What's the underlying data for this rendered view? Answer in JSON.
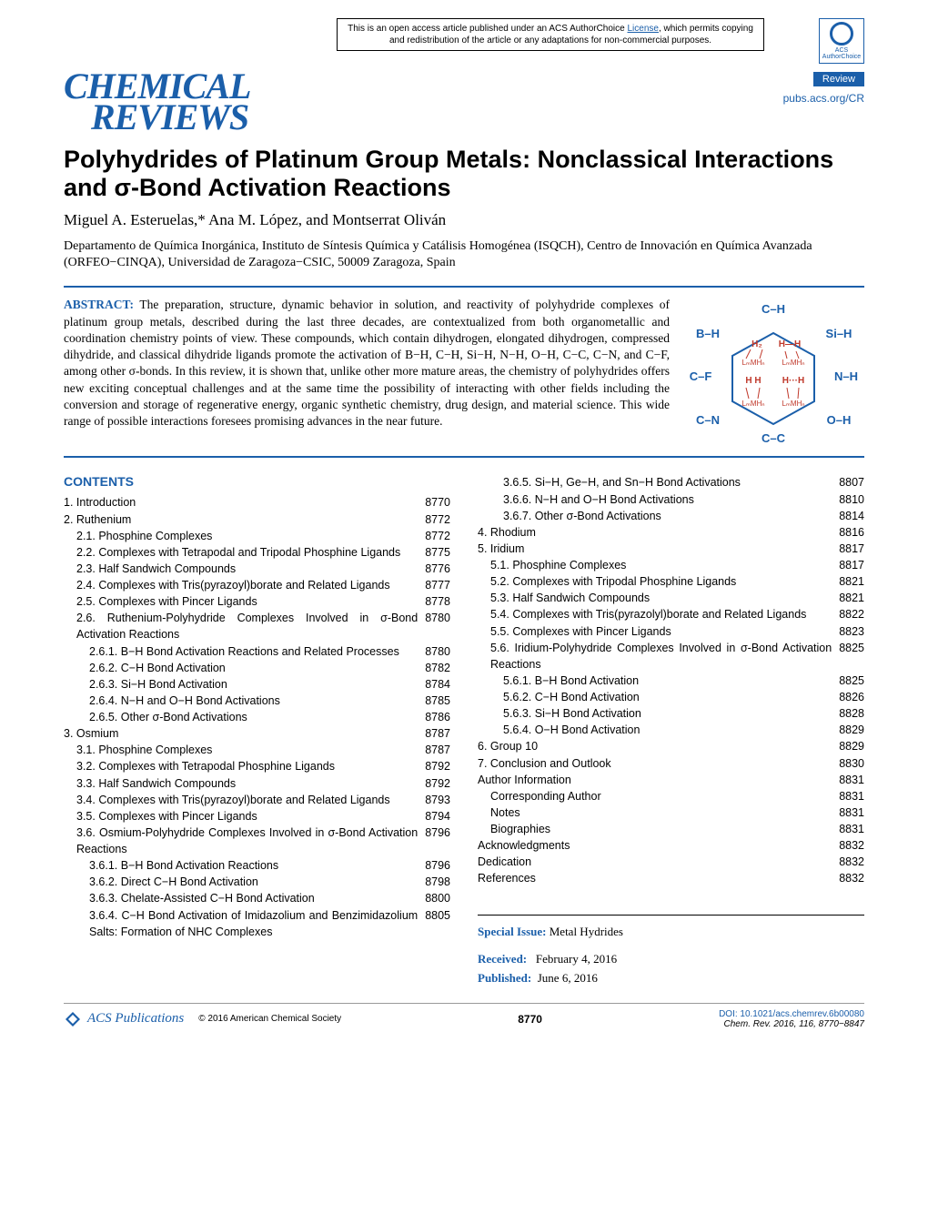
{
  "license_notice": "This is an open access article published under an ACS AuthorChoice ",
  "license_link_text": "License",
  "license_notice2": ", which permits copying and redistribution of the article or any adaptations for non-commercial purposes.",
  "acs_badge_label": "ACS AuthorChoice",
  "journal_logo_line1": "CHEMICAL",
  "journal_logo_line2": "REVIEWS",
  "review_badge": "Review",
  "pubs_link": "pubs.acs.org/CR",
  "title": "Polyhydrides of Platinum Group Metals: Nonclassical Interactions and σ-Bond Activation Reactions",
  "authors": "Miguel A. Esteruelas,* Ana M. López, and Montserrat Oliván",
  "affiliation": "Departamento de Química Inorgánica, Instituto de Síntesis Química y Catálisis Homogénea (ISQCH), Centro de Innovación en Química Avanzada (ORFEO−CINQA), Universidad de Zaragoza−CSIC, 50009 Zaragoza, Spain",
  "abstract_label": "ABSTRACT:",
  "abstract_text": "The preparation, structure, dynamic behavior in solution, and reactivity of polyhydride complexes of platinum group metals, described during the last three decades, are contextualized from both organometallic and coordination chemistry points of view. These compounds, which contain dihydrogen, elongated dihydrogen, compressed dihydride, and classical dihydride ligands promote the activation of B−H, C−H, Si−H, N−H, O−H, C−C, C−N, and C−F, among other σ-bonds. In this review, it is shown that, unlike other more mature areas, the chemistry of polyhydrides offers new exciting conceptual challenges and at the same time the possibility of interacting with other fields including the conversion and storage of regenerative energy, organic synthetic chemistry, drug design, and material science. This wide range of possible interactions foresees promising advances in the near future.",
  "toc_graphic": {
    "hex_color": "#1b5faa",
    "red_color": "#c0392b",
    "labels": {
      "top": "C–H",
      "tr": "Si–H",
      "r": "N–H",
      "br": "O–H",
      "b": "C–C",
      "bl": "C–N",
      "l": "C–F",
      "tl": "B–H"
    },
    "center_labels": [
      "H₂",
      "H—H",
      "LₘMHₙ",
      "LₘMHₙ",
      "H   H",
      "H···H",
      "LₘMHₙ",
      "LₘMHₙ"
    ]
  },
  "contents_heading": "CONTENTS",
  "toc_left": [
    {
      "label": "1. Introduction",
      "page": "8770",
      "indent": 0
    },
    {
      "label": "2. Ruthenium",
      "page": "8772",
      "indent": 0
    },
    {
      "label": "2.1. Phosphine Complexes",
      "page": "8772",
      "indent": 1
    },
    {
      "label": "2.2. Complexes with Tetrapodal and Tripodal Phosphine Ligands",
      "page": "8775",
      "indent": 1
    },
    {
      "label": "2.3. Half Sandwich Compounds",
      "page": "8776",
      "indent": 1
    },
    {
      "label": "2.4. Complexes with Tris(pyrazoyl)borate and Related Ligands",
      "page": "8777",
      "indent": 1
    },
    {
      "label": "2.5. Complexes with Pincer Ligands",
      "page": "8778",
      "indent": 1
    },
    {
      "label": "2.6. Ruthenium-Polyhydride Complexes Involved in σ-Bond Activation Reactions",
      "page": "8780",
      "indent": 1
    },
    {
      "label": "2.6.1. B−H Bond Activation Reactions and Related Processes",
      "page": "8780",
      "indent": 2
    },
    {
      "label": "2.6.2. C−H Bond Activation",
      "page": "8782",
      "indent": 2
    },
    {
      "label": "2.6.3. Si−H Bond Activation",
      "page": "8784",
      "indent": 2
    },
    {
      "label": "2.6.4. N−H and O−H Bond Activations",
      "page": "8785",
      "indent": 2
    },
    {
      "label": "2.6.5. Other σ-Bond Activations",
      "page": "8786",
      "indent": 2
    },
    {
      "label": "3. Osmium",
      "page": "8787",
      "indent": 0
    },
    {
      "label": "3.1. Phosphine Complexes",
      "page": "8787",
      "indent": 1
    },
    {
      "label": "3.2. Complexes with Tetrapodal Phosphine Ligands",
      "page": "8792",
      "indent": 1
    },
    {
      "label": "3.3. Half Sandwich Compounds",
      "page": "8792",
      "indent": 1
    },
    {
      "label": "3.4. Complexes with Tris(pyrazoyl)borate and Related Ligands",
      "page": "8793",
      "indent": 1
    },
    {
      "label": "3.5. Complexes with Pincer Ligands",
      "page": "8794",
      "indent": 1
    },
    {
      "label": "3.6. Osmium-Polyhydride Complexes Involved in σ-Bond Activation Reactions",
      "page": "8796",
      "indent": 1
    },
    {
      "label": "3.6.1. B−H Bond Activation Reactions",
      "page": "8796",
      "indent": 2
    },
    {
      "label": "3.6.2. Direct C−H Bond Activation",
      "page": "8798",
      "indent": 2
    },
    {
      "label": "3.6.3. Chelate-Assisted C−H Bond Activation",
      "page": "8800",
      "indent": 2
    },
    {
      "label": "3.6.4. C−H Bond Activation of Imidazolium and Benzimidazolium Salts: Formation of NHC Complexes",
      "page": "8805",
      "indent": 2
    }
  ],
  "toc_right": [
    {
      "label": "3.6.5. Si−H, Ge−H, and Sn−H Bond Activations",
      "page": "8807",
      "indent": 2
    },
    {
      "label": "3.6.6. N−H and O−H Bond Activations",
      "page": "8810",
      "indent": 2
    },
    {
      "label": "3.6.7. Other σ-Bond Activations",
      "page": "8814",
      "indent": 2
    },
    {
      "label": "4. Rhodium",
      "page": "8816",
      "indent": 0
    },
    {
      "label": "5. Iridium",
      "page": "8817",
      "indent": 0
    },
    {
      "label": "5.1. Phosphine Complexes",
      "page": "8817",
      "indent": 1
    },
    {
      "label": "5.2. Complexes with Tripodal Phosphine Ligands",
      "page": "8821",
      "indent": 1
    },
    {
      "label": "5.3. Half Sandwich Compounds",
      "page": "8821",
      "indent": 1
    },
    {
      "label": "5.4. Complexes with Tris(pyrazolyl)borate and Related Ligands",
      "page": "8822",
      "indent": 1
    },
    {
      "label": "5.5. Complexes with Pincer Ligands",
      "page": "8823",
      "indent": 1
    },
    {
      "label": "5.6. Iridium-Polyhydride Complexes Involved in σ-Bond Activation Reactions",
      "page": "8825",
      "indent": 1
    },
    {
      "label": "5.6.1. B−H Bond Activation",
      "page": "8825",
      "indent": 2
    },
    {
      "label": "5.6.2. C−H Bond Activation",
      "page": "8826",
      "indent": 2
    },
    {
      "label": "5.6.3. Si−H Bond Activation",
      "page": "8828",
      "indent": 2
    },
    {
      "label": "5.6.4. O−H Bond Activation",
      "page": "8829",
      "indent": 2
    },
    {
      "label": "6. Group 10",
      "page": "8829",
      "indent": 0
    },
    {
      "label": "7. Conclusion and Outlook",
      "page": "8830",
      "indent": 0
    },
    {
      "label": "Author Information",
      "page": "8831",
      "indent": 0
    },
    {
      "label": "Corresponding Author",
      "page": "8831",
      "indent": 1
    },
    {
      "label": "Notes",
      "page": "8831",
      "indent": 1
    },
    {
      "label": "Biographies",
      "page": "8831",
      "indent": 1
    },
    {
      "label": "Acknowledgments",
      "page": "8832",
      "indent": 0
    },
    {
      "label": "Dedication",
      "page": "8832",
      "indent": 0
    },
    {
      "label": "References",
      "page": "8832",
      "indent": 0
    }
  ],
  "special_issue_label": "Special Issue:",
  "special_issue_value": "Metal Hydrides",
  "received_label": "Received:",
  "received_value": "February 4, 2016",
  "published_label": "Published:",
  "published_value": "June 6, 2016",
  "footer": {
    "pub_logo": "ACS Publications",
    "copyright": "© 2016 American Chemical Society",
    "page_num": "8770",
    "doi": "DOI: 10.1021/acs.chemrev.6b00080",
    "citation": "Chem. Rev. 2016, 116, 8770−8847"
  },
  "colors": {
    "acs_blue": "#1b5faa",
    "text": "#000000",
    "background": "#ffffff"
  }
}
